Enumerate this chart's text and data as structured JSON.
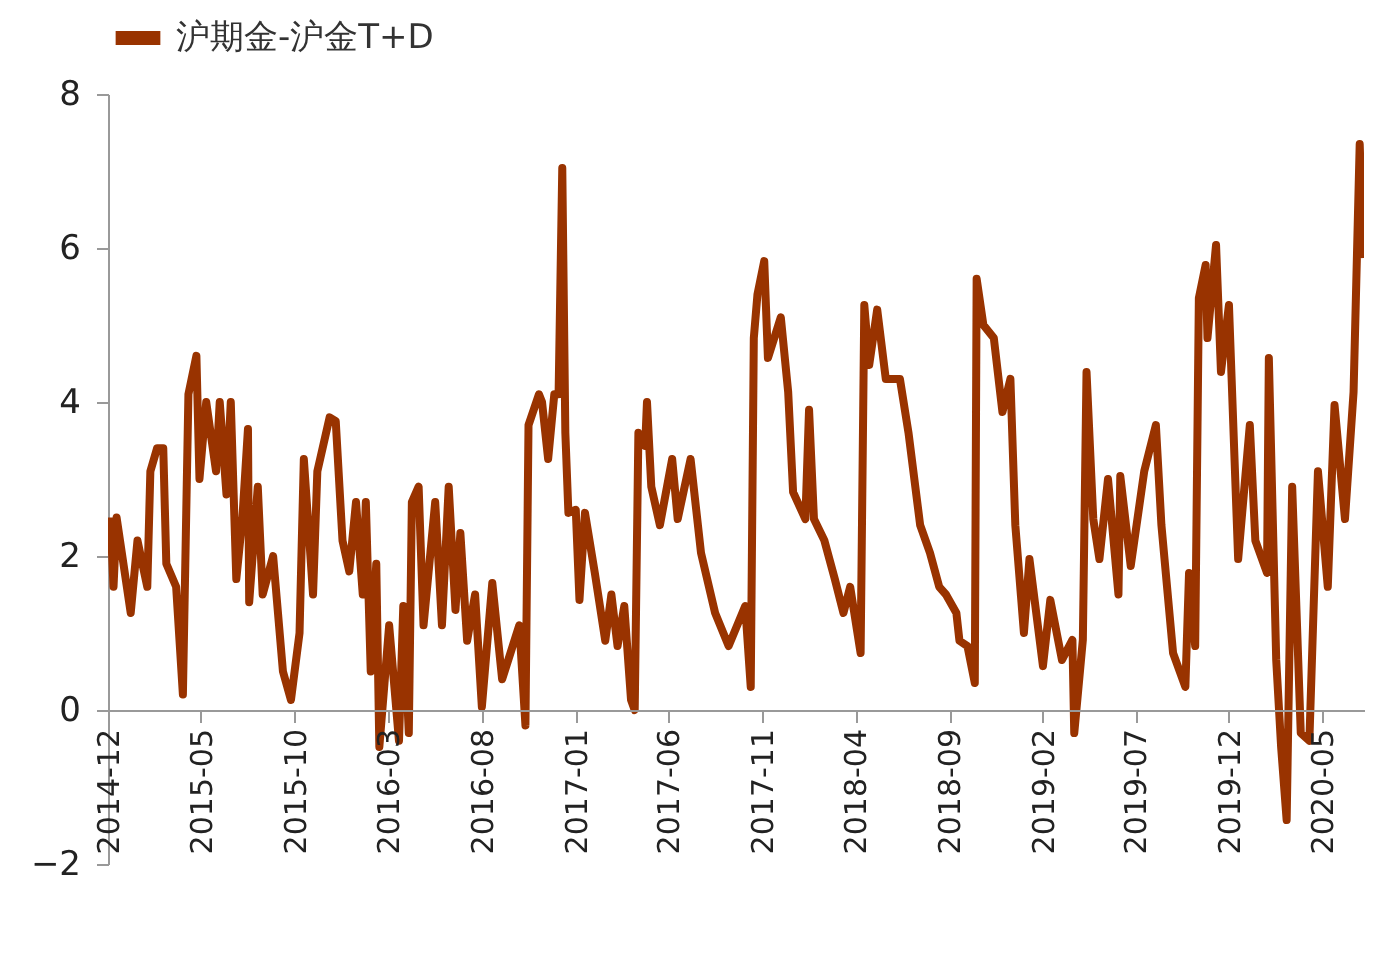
{
  "chart_data": {
    "type": "line",
    "legend": "top",
    "grid": false,
    "line_style": "solid",
    "marker": "none",
    "xlim": [
      "2014-12-01",
      "2020-07-08"
    ],
    "xticks": [
      "2014-12",
      "2015-05",
      "2015-10",
      "2016-03",
      "2016-08",
      "2017-01",
      "2017-06",
      "2017-11",
      "2018-04",
      "2018-09",
      "2019-02",
      "2019-07",
      "2019-12",
      "2020-05"
    ],
    "ylim": [
      -2,
      8
    ],
    "yticks": [
      -2,
      0,
      2,
      4,
      6,
      8
    ],
    "series": [
      {
        "name": "沪期金-沪金T+D",
        "color": "#993300",
        "x": [
          "2014-12-05",
          "2014-12-10",
          "2014-12-15",
          "2015-01-07",
          "2015-01-18",
          "2015-02-03",
          "2015-02-08",
          "2015-02-19",
          "2015-03-01",
          "2015-03-06",
          "2015-03-22",
          "2015-04-02",
          "2015-04-11",
          "2015-04-24",
          "2015-04-29",
          "2015-05-10",
          "2015-05-26",
          "2015-06-01",
          "2015-06-12",
          "2015-06-19",
          "2015-06-28",
          "2015-07-08",
          "2015-07-17",
          "2015-07-19",
          "2015-08-02",
          "2015-08-10",
          "2015-08-27",
          "2015-09-12",
          "2015-09-25",
          "2015-10-09",
          "2015-10-16",
          "2015-10-31",
          "2015-11-07",
          "2015-11-27",
          "2015-12-07",
          "2015-12-18",
          "2015-12-29",
          "2016-01-09",
          "2016-01-20",
          "2016-01-25",
          "2016-02-02",
          "2016-02-11",
          "2016-02-16",
          "2016-03-03",
          "2016-03-19",
          "2016-03-26",
          "2016-04-04",
          "2016-04-09",
          "2016-04-20",
          "2016-04-28",
          "2016-05-17",
          "2016-05-28",
          "2016-06-08",
          "2016-06-19",
          "2016-06-27",
          "2016-07-08",
          "2016-07-21",
          "2016-08-01",
          "2016-08-18",
          "2016-09-03",
          "2016-10-01",
          "2016-10-11",
          "2016-10-16",
          "2016-11-02",
          "2016-11-07",
          "2016-11-17",
          "2016-11-27",
          "2016-12-04",
          "2016-12-10",
          "2016-12-15",
          "2016-12-20",
          "2017-01-01",
          "2017-01-07",
          "2017-01-16",
          "2017-02-01",
          "2017-02-18",
          "2017-02-28",
          "2017-03-10",
          "2017-03-21",
          "2017-04-01",
          "2017-04-07",
          "2017-04-13",
          "2017-04-24",
          "2017-04-27",
          "2017-05-04",
          "2017-05-18",
          "2017-06-07",
          "2017-06-16",
          "2017-07-07",
          "2017-07-24",
          "2017-08-16",
          "2017-09-07",
          "2017-10-04",
          "2017-10-13",
          "2017-10-18",
          "2017-10-24",
          "2017-11-04",
          "2017-11-10",
          "2017-12-01",
          "2017-12-13",
          "2017-12-21",
          "2018-01-10",
          "2018-01-16",
          "2018-01-24",
          "2018-02-10",
          "2018-02-27",
          "2018-03-13",
          "2018-03-24",
          "2018-04-10",
          "2018-04-16",
          "2018-04-24",
          "2018-05-07",
          "2018-05-21",
          "2018-06-13",
          "2018-06-27",
          "2018-07-16",
          "2018-08-01",
          "2018-08-16",
          "2018-08-27",
          "2018-09-13",
          "2018-09-18",
          "2018-10-01",
          "2018-10-13",
          "2018-10-16",
          "2018-10-27",
          "2018-11-13",
          "2018-11-27",
          "2018-12-10",
          "2018-12-18",
          "2019-01-01",
          "2019-01-10",
          "2019-02-01",
          "2019-02-13",
          "2019-03-04",
          "2019-03-21",
          "2019-03-24",
          "2019-04-07",
          "2019-04-13",
          "2019-04-24",
          "2019-05-04",
          "2019-05-18",
          "2019-06-04",
          "2019-06-07",
          "2019-06-24",
          "2019-07-16",
          "2019-08-04",
          "2019-08-13",
          "2019-09-01",
          "2019-09-21",
          "2019-09-27",
          "2019-10-07",
          "2019-10-13",
          "2019-10-24",
          "2019-10-27",
          "2019-11-10",
          "2019-11-18",
          "2019-12-01",
          "2019-12-16",
          "2020-01-04",
          "2020-01-13",
          "2020-02-01",
          "2020-02-04",
          "2020-02-16",
          "2020-02-24",
          "2020-03-04",
          "2020-03-13",
          "2020-03-27",
          "2020-04-10",
          "2020-04-24",
          "2020-05-10",
          "2020-05-21",
          "2020-06-07",
          "2020-06-21",
          "2020-07-01",
          "2020-07-07"
        ],
        "values": [
          2.5,
          1.6,
          2.5,
          1.26,
          2.2,
          1.6,
          3.1,
          3.4,
          3.4,
          1.9,
          1.6,
          0.2,
          4.1,
          4.6,
          3.0,
          4.0,
          3.1,
          4.0,
          2.8,
          4.0,
          1.7,
          2.5,
          3.65,
          1.4,
          2.9,
          1.5,
          2.0,
          0.5,
          0.13,
          1.0,
          3.26,
          1.5,
          3.1,
          3.8,
          3.75,
          2.2,
          1.8,
          2.7,
          1.5,
          2.7,
          0.5,
          1.9,
          -0.48,
          1.1,
          -0.4,
          1.35,
          -0.3,
          2.7,
          2.9,
          1.1,
          2.7,
          1.1,
          2.9,
          1.3,
          2.3,
          0.9,
          1.5,
          0.04,
          1.65,
          0.4,
          1.1,
          -0.2,
          3.7,
          4.1,
          4.0,
          3.26,
          4.1,
          4.1,
          7.04,
          3.6,
          2.56,
          2.6,
          1.43,
          2.56,
          1.78,
          0.9,
          1.5,
          0.83,
          1.35,
          0.13,
          0.0,
          3.6,
          3.43,
          4.0,
          2.9,
          2.4,
          3.26,
          2.48,
          3.26,
          2.04,
          1.26,
          0.83,
          1.35,
          0.3,
          4.83,
          5.4,
          5.83,
          4.57,
          5.1,
          4.13,
          2.83,
          2.48,
          3.9,
          2.48,
          2.2,
          1.7,
          1.26,
          1.6,
          0.74,
          5.26,
          4.48,
          5.2,
          4.3,
          4.3,
          3.6,
          2.4,
          2.04,
          1.6,
          1.5,
          1.26,
          0.9,
          0.83,
          0.35,
          5.6,
          5.0,
          4.83,
          3.87,
          4.3,
          2.4,
          1.0,
          1.96,
          0.57,
          1.43,
          0.65,
          0.91,
          -0.3,
          0.91,
          4.39,
          2.48,
          1.96,
          3.0,
          1.5,
          3.04,
          1.87,
          3.1,
          3.7,
          2.4,
          0.74,
          0.3,
          1.78,
          0.83,
          5.35,
          5.78,
          4.83,
          6.04,
          4.39,
          5.26,
          1.96,
          3.7,
          2.2,
          1.78,
          4.57,
          0.65,
          -0.48,
          -1.43,
          2.9,
          -0.3,
          -0.4,
          3.1,
          1.6,
          3.96,
          2.48,
          4.13,
          7.35,
          5.87
        ]
      }
    ]
  }
}
